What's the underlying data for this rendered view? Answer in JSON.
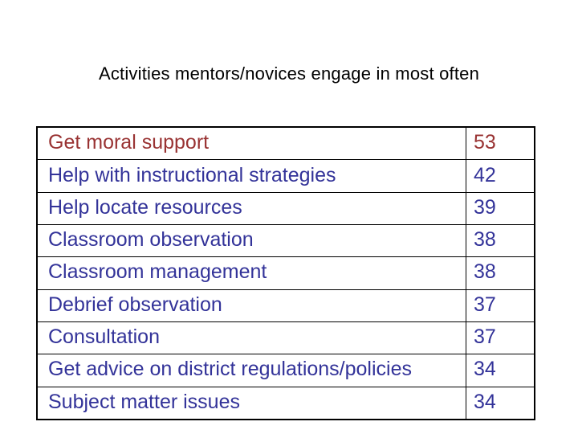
{
  "title": "Activities mentors/novices engage in most often",
  "table": {
    "rows": [
      {
        "activity": "Get moral support",
        "count": "53",
        "emphasis": true
      },
      {
        "activity": "Help with instructional strategies",
        "count": "42",
        "emphasis": false
      },
      {
        "activity": "Help locate resources",
        "count": "39",
        "emphasis": false
      },
      {
        "activity": "Classroom observation",
        "count": "38",
        "emphasis": false
      },
      {
        "activity": "Classroom management",
        "count": "38",
        "emphasis": false
      },
      {
        "activity": "Debrief observation",
        "count": "37",
        "emphasis": false
      },
      {
        "activity": "Consultation",
        "count": "37",
        "emphasis": false
      },
      {
        "activity": "Get advice on district regulations/policies",
        "count": "34",
        "emphasis": false
      },
      {
        "activity": "Subject matter issues",
        "count": "34",
        "emphasis": false
      }
    ]
  },
  "colors": {
    "emphasis_text": "#993333",
    "normal_text": "#333399",
    "title_text": "#000000",
    "border": "#000000",
    "background": "#ffffff"
  }
}
